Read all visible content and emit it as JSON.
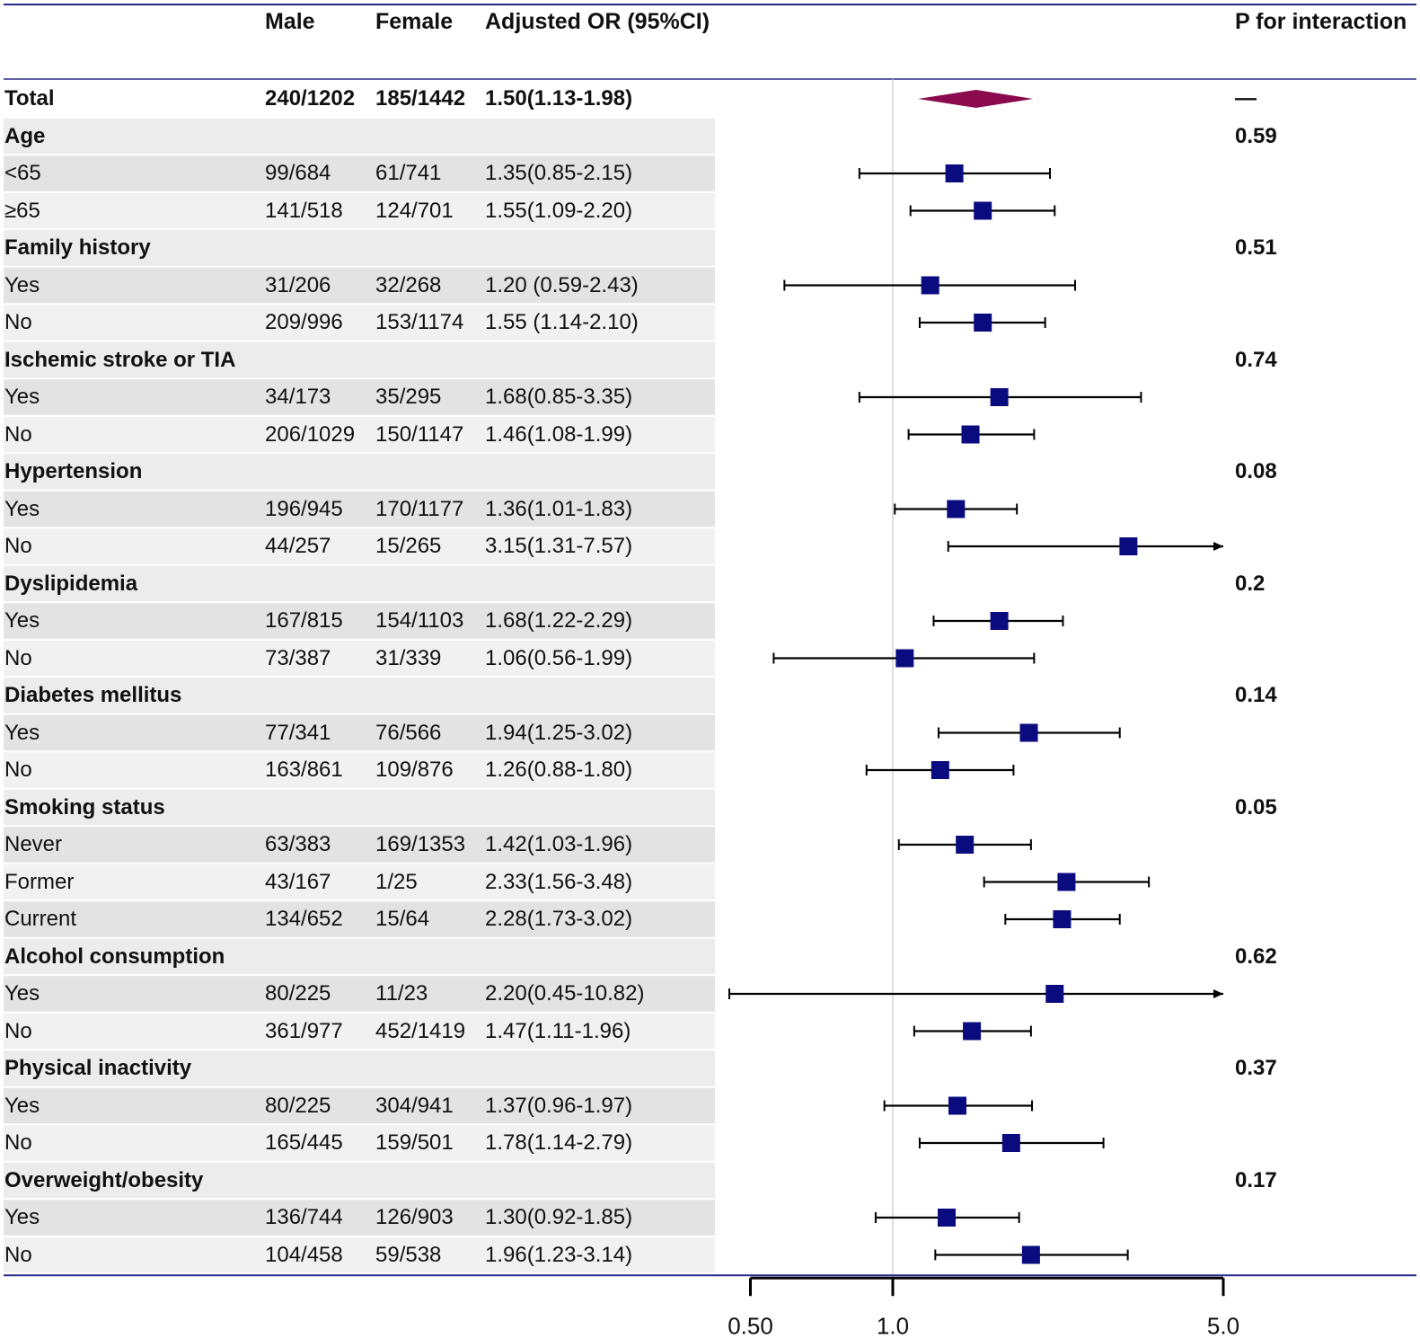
{
  "chart_data": {
    "type": "forest",
    "scale": "log",
    "reference_line": 1.0,
    "x_ticks": [
      "0.50",
      "1.0",
      "5.0"
    ],
    "columns": {
      "male": "Male",
      "female": "Female",
      "or": "Adjusted OR (95%CI)",
      "p": "P for interaction"
    },
    "total": {
      "label": "Total",
      "male": "240/1202",
      "female": "185/1442",
      "or_text": "1.50(1.13-1.98)",
      "or": 1.5,
      "lo": 1.13,
      "hi": 1.98,
      "p": "—"
    },
    "groups": [
      {
        "label": "Age",
        "p": "0.59",
        "rows": [
          {
            "label": "<65",
            "male": "99/684",
            "female": "61/741",
            "or_text": "1.35(0.85-2.15)",
            "or": 1.35,
            "lo": 0.85,
            "hi": 2.15
          },
          {
            "label": "≥65",
            "male": "141/518",
            "female": "124/701",
            "or_text": "1.55(1.09-2.20)",
            "or": 1.55,
            "lo": 1.09,
            "hi": 2.2
          }
        ]
      },
      {
        "label": "Family history",
        "p": "0.51",
        "rows": [
          {
            "label": "Yes",
            "male": "31/206",
            "female": "32/268",
            "or_text": "1.20 (0.59-2.43)",
            "or": 1.2,
            "lo": 0.59,
            "hi": 2.43
          },
          {
            "label": "No",
            "male": "209/996",
            "female": "153/1174",
            "or_text": "1.55 (1.14-2.10)",
            "or": 1.55,
            "lo": 1.14,
            "hi": 2.1
          }
        ]
      },
      {
        "label": "Ischemic stroke or TIA",
        "p": "0.74",
        "rows": [
          {
            "label": "Yes",
            "male": "34/173",
            "female": "35/295",
            "or_text": "1.68(0.85-3.35)",
            "or": 1.68,
            "lo": 0.85,
            "hi": 3.35
          },
          {
            "label": "No",
            "male": "206/1029",
            "female": "150/1147",
            "or_text": "1.46(1.08-1.99)",
            "or": 1.46,
            "lo": 1.08,
            "hi": 1.99
          }
        ]
      },
      {
        "label": "Hypertension",
        "p": "0.08",
        "rows": [
          {
            "label": "Yes",
            "male": "196/945",
            "female": "170/1177",
            "or_text": "1.36(1.01-1.83)",
            "or": 1.36,
            "lo": 1.01,
            "hi": 1.83
          },
          {
            "label": "No",
            "male": "44/257",
            "female": "15/265",
            "or_text": "3.15(1.31-7.57)",
            "or": 3.15,
            "lo": 1.31,
            "hi": 7.57
          }
        ]
      },
      {
        "label": "Dyslipidemia",
        "p": "0.2",
        "rows": [
          {
            "label": "Yes",
            "male": "167/815",
            "female": "154/1103",
            "or_text": "1.68(1.22-2.29)",
            "or": 1.68,
            "lo": 1.22,
            "hi": 2.29
          },
          {
            "label": "No",
            "male": "73/387",
            "female": "31/339",
            "or_text": "1.06(0.56-1.99)",
            "or": 1.06,
            "lo": 0.56,
            "hi": 1.99
          }
        ]
      },
      {
        "label": "Diabetes mellitus",
        "p": "0.14",
        "rows": [
          {
            "label": "Yes",
            "male": "77/341",
            "female": "76/566",
            "or_text": "1.94(1.25-3.02)",
            "or": 1.94,
            "lo": 1.25,
            "hi": 3.02
          },
          {
            "label": "No",
            "male": "163/861",
            "female": "109/876",
            "or_text": "1.26(0.88-1.80)",
            "or": 1.26,
            "lo": 0.88,
            "hi": 1.8
          }
        ]
      },
      {
        "label": "Smoking status",
        "p": "0.05",
        "rows": [
          {
            "label": "Never",
            "male": "63/383",
            "female": "169/1353",
            "or_text": "1.42(1.03-1.96)",
            "or": 1.42,
            "lo": 1.03,
            "hi": 1.96
          },
          {
            "label": "Former",
            "male": "43/167",
            "female": "1/25",
            "or_text": "2.33(1.56-3.48)",
            "or": 2.33,
            "lo": 1.56,
            "hi": 3.48
          },
          {
            "label": "Current",
            "male": "134/652",
            "female": "15/64",
            "or_text": "2.28(1.73-3.02)",
            "or": 2.28,
            "lo": 1.73,
            "hi": 3.02
          }
        ]
      },
      {
        "label": "Alcohol consumption",
        "p": "0.62",
        "rows": [
          {
            "label": "Yes",
            "male": "80/225",
            "female": "11/23",
            "or_text": "2.20(0.45-10.82)",
            "or": 2.2,
            "lo": 0.45,
            "hi": 10.82
          },
          {
            "label": "No",
            "male": "361/977",
            "female": "452/1419",
            "or_text": "1.47(1.11-1.96)",
            "or": 1.47,
            "lo": 1.11,
            "hi": 1.96
          }
        ]
      },
      {
        "label": "Physical inactivity",
        "p": "0.37",
        "rows": [
          {
            "label": "Yes",
            "male": "80/225",
            "female": "304/941",
            "or_text": "1.37(0.96-1.97)",
            "or": 1.37,
            "lo": 0.96,
            "hi": 1.97
          },
          {
            "label": "No",
            "male": "165/445",
            "female": "159/501",
            "or_text": "1.78(1.14-2.79)",
            "or": 1.78,
            "lo": 1.14,
            "hi": 2.79
          }
        ]
      },
      {
        "label": "Overweight/obesity",
        "p": "0.17",
        "rows": [
          {
            "label": "Yes",
            "male": "136/744",
            "female": "126/903",
            "or_text": "1.30(0.92-1.85)",
            "or": 1.3,
            "lo": 0.92,
            "hi": 1.85
          },
          {
            "label": "No",
            "male": "104/458",
            "female": "59/538",
            "or_text": "1.96(1.23-3.14)",
            "or": 1.96,
            "lo": 1.23,
            "hi": 3.14
          }
        ]
      }
    ],
    "colors": {
      "point": "#0b0b80",
      "diamond": "#8b0a4e",
      "rule": "#2a2a8a",
      "band": "#ececec"
    }
  }
}
